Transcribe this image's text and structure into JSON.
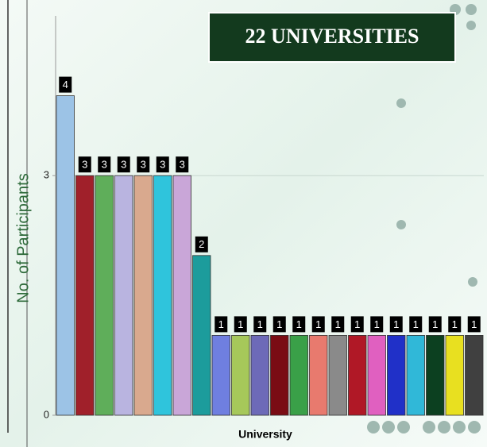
{
  "chart_data": {
    "type": "bar",
    "title": "22 UNIVERSITIES",
    "x_label": "University",
    "y_label": "No. of Participants",
    "categories": [
      null,
      null,
      null,
      null,
      null,
      null,
      null,
      null,
      null,
      null,
      null,
      null,
      null,
      null,
      null,
      null,
      null,
      null,
      null,
      null,
      null,
      null
    ],
    "values": [
      4,
      3,
      3,
      3,
      3,
      3,
      3,
      2,
      1,
      1,
      1,
      1,
      1,
      1,
      1,
      1,
      1,
      1,
      1,
      1,
      1,
      1
    ],
    "colors": [
      "#9cc3e6",
      "#a0202a",
      "#5fae5a",
      "#b9b4e0",
      "#d9a98e",
      "#2fc4dc",
      "#c9a6d8",
      "#1c9c9c",
      "#6f7fe0",
      "#a6c85a",
      "#6d6ab8",
      "#7a0c14",
      "#3aa048",
      "#e87a6e",
      "#8a8a8a",
      "#b01826",
      "#e060c0",
      "#2030c8",
      "#30b8d8",
      "#0c4020",
      "#e8e020",
      "#404040"
    ],
    "ylim": [
      0,
      5
    ],
    "yticks": [
      0,
      3
    ],
    "grid": true
  }
}
